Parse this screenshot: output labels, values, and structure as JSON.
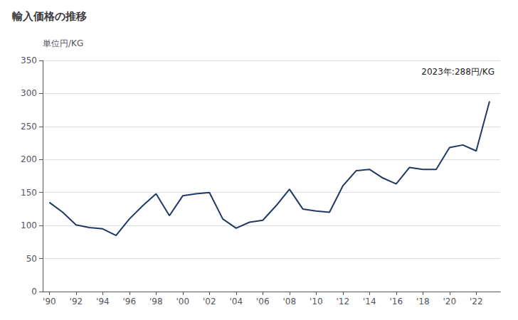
{
  "chart_data": {
    "type": "line",
    "title": "輸入価格の推移",
    "ylabel": "単位円/KG",
    "annotation": "2023年:288円/KG",
    "x": [
      1990,
      1991,
      1992,
      1993,
      1994,
      1995,
      1996,
      1997,
      1998,
      1999,
      2000,
      2001,
      2002,
      2003,
      2004,
      2005,
      2006,
      2007,
      2008,
      2009,
      2010,
      2011,
      2012,
      2013,
      2014,
      2015,
      2016,
      2017,
      2018,
      2019,
      2020,
      2021,
      2022,
      2023
    ],
    "values": [
      135,
      120,
      101,
      97,
      95,
      85,
      110,
      130,
      148,
      115,
      145,
      148,
      150,
      110,
      96,
      105,
      108,
      130,
      155,
      125,
      122,
      120,
      160,
      183,
      185,
      172,
      163,
      188,
      185,
      185,
      218,
      222,
      213,
      288
    ],
    "color": "#1f3864",
    "xlim": [
      1989.5,
      2023.8
    ],
    "xticks": [
      {
        "value": 1990,
        "label": "'90"
      },
      {
        "value": 1992,
        "label": "'92"
      },
      {
        "value": 1994,
        "label": "'94"
      },
      {
        "value": 1996,
        "label": "'96"
      },
      {
        "value": 1998,
        "label": "'98"
      },
      {
        "value": 2000,
        "label": "'00"
      },
      {
        "value": 2002,
        "label": "'02"
      },
      {
        "value": 2004,
        "label": "'04"
      },
      {
        "value": 2006,
        "label": "'06"
      },
      {
        "value": 2008,
        "label": "'08"
      },
      {
        "value": 2010,
        "label": "'10"
      },
      {
        "value": 2012,
        "label": "'12"
      },
      {
        "value": 2014,
        "label": "'14"
      },
      {
        "value": 2016,
        "label": "'16"
      },
      {
        "value": 2018,
        "label": "'18"
      },
      {
        "value": 2020,
        "label": "'20"
      },
      {
        "value": 2022,
        "label": "'22"
      }
    ],
    "ylim": [
      0,
      350
    ],
    "yticks": [
      0,
      50,
      100,
      150,
      200,
      250,
      300,
      350
    ],
    "grid": true
  }
}
